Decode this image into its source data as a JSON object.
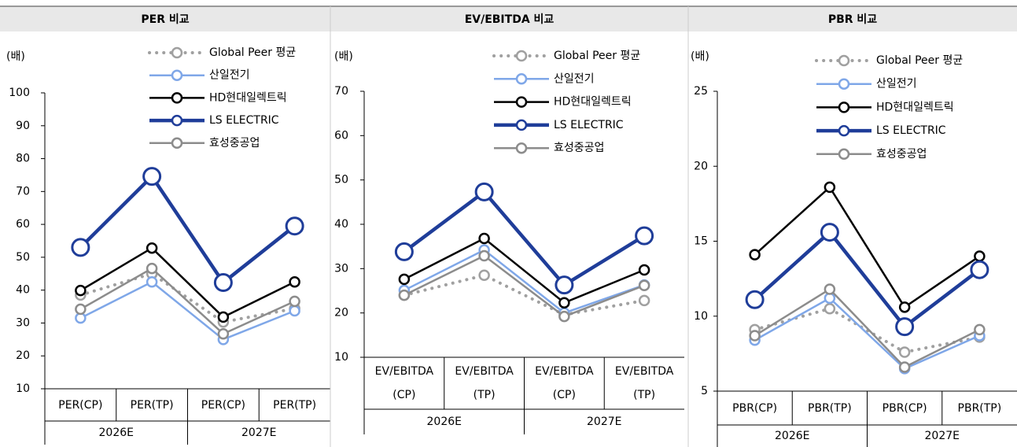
{
  "chart_data": [
    {
      "type": "line",
      "title": "PER 비교",
      "y_label": "(배)",
      "categories": [
        "PER(CP)",
        "PER(TP)",
        "PER(CP)",
        "PER(TP)"
      ],
      "group_labels": [
        "2026E",
        "2027E"
      ],
      "ylim": [
        10,
        100
      ],
      "yticks": [
        10,
        20,
        30,
        40,
        50,
        60,
        70,
        80,
        90,
        100
      ],
      "series": [
        {
          "name": "Global Peer 평균",
          "color": "#a0a0a0",
          "style": "dotted",
          "values": [
            38.5,
            45,
            30.3,
            34.4
          ]
        },
        {
          "name": "산일전기",
          "color": "#7fa7e8",
          "values": [
            31.5,
            42.5,
            25,
            33.7
          ]
        },
        {
          "name": "HD현대일렉트릭",
          "color": "#000000",
          "values": [
            39.9,
            52.8,
            31.8,
            42.5
          ]
        },
        {
          "name": "LS ELECTRIC",
          "color": "#1f3d99",
          "values": [
            53,
            74.6,
            42.3,
            59.5
          ]
        },
        {
          "name": "효성중공업",
          "color": "#8c8c8c",
          "values": [
            34.2,
            46.6,
            26.7,
            36.6
          ]
        }
      ]
    },
    {
      "type": "line",
      "title": "EV/EBITDA 비교",
      "y_label": "(배)",
      "categories": [
        "EV/EBITDA\n(CP)",
        "EV/EBITDA\n(TP)",
        "EV/EBITDA\n(CP)",
        "EV/EBITDA\n(TP)"
      ],
      "group_labels": [
        "2026E",
        "2027E"
      ],
      "ylim": [
        10,
        70
      ],
      "yticks": [
        10,
        20,
        30,
        40,
        50,
        60,
        70
      ],
      "series": [
        {
          "name": "Global Peer 평균",
          "color": "#a0a0a0",
          "style": "dotted",
          "values": [
            24,
            28.5,
            19.6,
            22.8
          ]
        },
        {
          "name": "산일전기",
          "color": "#7fa7e8",
          "values": [
            25.1,
            34.2,
            20,
            26.3
          ]
        },
        {
          "name": "HD현대일렉트릭",
          "color": "#000000",
          "values": [
            27.6,
            36.8,
            22.3,
            29.7
          ]
        },
        {
          "name": "LS ELECTRIC",
          "color": "#1f3d99",
          "values": [
            33.8,
            47.3,
            26.3,
            37.4
          ]
        },
        {
          "name": "효성중공업",
          "color": "#8c8c8c",
          "values": [
            24,
            32.9,
            19.2,
            26.2
          ]
        }
      ]
    },
    {
      "type": "line",
      "title": "PBR 비교",
      "y_label": "(배)",
      "categories": [
        "PBR(CP)",
        "PBR(TP)",
        "PBR(CP)",
        "PBR(TP)"
      ],
      "group_labels": [
        "2026E",
        "2027E"
      ],
      "ylim": [
        5,
        25
      ],
      "yticks": [
        5,
        10,
        15,
        20,
        25
      ],
      "series": [
        {
          "name": "Global Peer 평균",
          "color": "#a0a0a0",
          "style": "dotted",
          "values": [
            9.1,
            10.5,
            7.6,
            8.6
          ]
        },
        {
          "name": "산일전기",
          "color": "#7fa7e8",
          "values": [
            8.4,
            11.2,
            6.5,
            8.7
          ]
        },
        {
          "name": "HD현대일렉트릭",
          "color": "#000000",
          "values": [
            14.1,
            18.6,
            10.6,
            14.0
          ]
        },
        {
          "name": "LS ELECTRIC",
          "color": "#1f3d99",
          "values": [
            11.1,
            15.6,
            9.3,
            13.1
          ]
        },
        {
          "name": "효성중공업",
          "color": "#8c8c8c",
          "values": [
            8.7,
            11.8,
            6.6,
            9.1
          ]
        }
      ]
    }
  ]
}
